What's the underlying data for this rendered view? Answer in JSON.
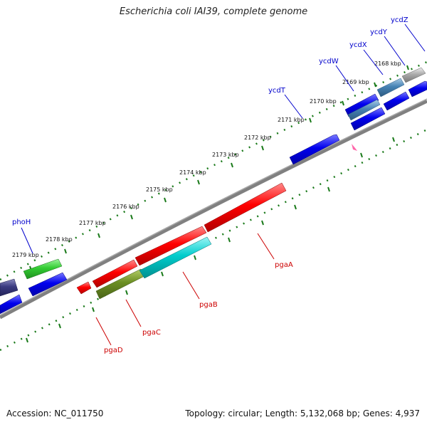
{
  "title": "Escherichia coli IAI39, complete genome",
  "footer": {
    "accession": "Accession: NC_011750",
    "summary": "Topology: circular; Length: 5,132,068 bp; Genes: 4,937"
  },
  "kbp_labels": [
    "2168 kbp",
    "2169 kbp",
    "2170 kbp",
    "2171 kbp",
    "2172 kbp",
    "2173 kbp",
    "2174 kbp",
    "2175 kbp",
    "2176 kbp",
    "2177 kbp",
    "2178 kbp",
    "2179 kbp"
  ],
  "gene_labels_outer": [
    "ycdZ",
    "ycdY",
    "ycdX",
    "ycdW",
    "ycdT",
    "phoH"
  ],
  "gene_labels_inner": [
    "pgaA",
    "pgaB",
    "pgaC",
    "pgaD"
  ],
  "colors": {
    "outer_label": "#0000cc",
    "inner_label": "#cc0000",
    "tick": "#1a7a1a",
    "backbone": "#808080",
    "blue_gene": "#0000ee",
    "red_gene": "#ff0000",
    "cyan_gene": "#00cccc",
    "olive_gene": "#6b8e23",
    "green_gene": "#33cc33",
    "navy_gene": "#3a3a80",
    "gray_gene": "#aaaaaa",
    "steel_gene": "#4682b4"
  }
}
